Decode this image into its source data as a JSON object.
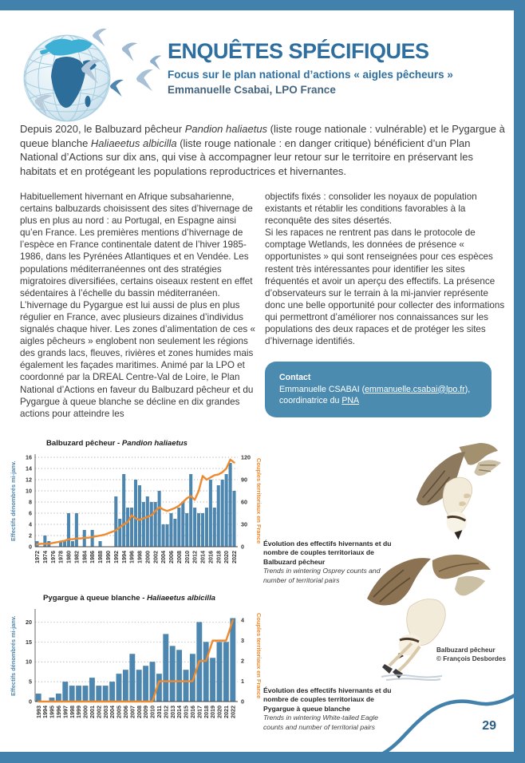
{
  "page": {
    "number": "29"
  },
  "header": {
    "title": "ENQUÊTES SPÉCIFIQUES",
    "subtitle": "Focus sur le plan national d’actions « aigles pêcheurs »",
    "author": "Emmanuelle Csabai, LPO France"
  },
  "icons": {
    "logo": "globe-with-migrating-birds",
    "illustration_top": "osprey-diving",
    "illustration_bottom": "osprey-hunting",
    "decoration": "wave-curve"
  },
  "intro": {
    "part1": "Depuis 2020, le Balbuzard pêcheur ",
    "species1": "Pandion haliaetus",
    "part2": " (liste rouge nationale : vulnérable) et le Pygargue à queue blanche ",
    "species2": "Haliaeetus albicilla",
    "part3": " (liste rouge nationale : en danger critique) bénéficient d’un Plan National d’Actions sur dix ans, qui vise à accompagner leur retour sur le territoire en préservant les habitats et en protégeant les populations reproductrices et hivernantes."
  },
  "columns": {
    "left_p1": "Habituellement hivernant en Afrique subsaharienne, certains balbuzards choisissent des sites d’hivernage de plus en plus au nord : au Portugal, en Espagne ainsi qu’en France. Les premières mentions d’hivernage de l’espèce en France continentale datent de l’hiver 1985-1986, dans les Pyrénées Atlantiques et en Vendée. Les populations méditerranéennes ont des stratégies migratoires diversifiées, certains oiseaux restent en effet sédentaires à l’échelle du bassin méditerranéen. L’hivernage du Pygargue est lui aussi de plus en plus régulier en France, avec plusieurs dizaines d’individus signalés chaque hiver. Les zones d’alimentation de ces « aigles pêcheurs » englobent non seulement les régions des grands lacs, fleuves, rivières et zones humides mais également les façades maritimes. Animé par la LPO et coordonné par la DREAL Centre-Val de Loire, le Plan National d’Actions en faveur du Balbuzard pêcheur et du Pygargue à queue blanche se décline en dix grandes actions pour atteindre les",
    "right_p1": "objectifs fixés : consolider les noyaux de population existants et rétablir les conditions favorables à la reconquête des sites désertés.",
    "right_p2": "Si les rapaces ne rentrent pas dans le protocole de comptage Wetlands, les données de présence « opportunistes » qui sont renseignées pour ces espèces restent très intéressantes pour identifier les sites fréquentés et avoir un aperçu des effectifs. La présence d’observateurs sur le terrain à la mi-janvier représente donc une belle opportunité pour collecter des informations qui permettront d’améliorer nos connaissances sur les populations des deux rapaces et de protéger les sites d’hivernage identifiés."
  },
  "contact": {
    "label": "Contact",
    "line1_prefix": "Emmanuelle CSABAI (",
    "email": "emmanuelle.csabai@lpo.fr",
    "line1_suffix": "),",
    "line2_prefix": "coordinatrice du ",
    "pna_link": "PNA"
  },
  "captions": [
    {
      "fr": "Évolution des effectifs hivernants et du nombre de couples territoriaux de Balbuzard pêcheur",
      "en": "Trends in wintering Osprey counts and number of territorial pairs"
    },
    {
      "fr": "Évolution des effectifs hivernants et du nombre de couples territoriaux de Pygargue à queue blanche",
      "en": "Trends in wintering White-tailed Eagle counts and number of territorial pairs"
    }
  ],
  "credit": {
    "line1": "Balbuzard pêcheur",
    "line2": "© François Desbordes"
  },
  "colors": {
    "frame_blue": "#4181ab",
    "title_blue": "#2e6f9f",
    "bar_blue": "#4d86ae",
    "line_orange": "#ee8a30",
    "contact_bg": "#4c8bb0"
  },
  "chart_data": [
    {
      "type": "bar+line",
      "title_prefix": "Balbuzard pêcheur - ",
      "title_species": "Pandion haliaetus",
      "ylabel_left": "Effectifs dénombrés mi-janv.",
      "ylabel_right": "Couples territoriaux en France",
      "legend_position": "none",
      "grid": "dotted-horizontal",
      "years": [
        1972,
        1973,
        1974,
        1975,
        1976,
        1977,
        1978,
        1979,
        1980,
        1981,
        1982,
        1983,
        1984,
        1985,
        1986,
        1987,
        1988,
        1989,
        1990,
        1991,
        1992,
        1993,
        1994,
        1995,
        1996,
        1997,
        1998,
        1999,
        2000,
        2001,
        2002,
        2003,
        2004,
        2005,
        2006,
        2007,
        2008,
        2009,
        2010,
        2011,
        2012,
        2013,
        2014,
        2015,
        2016,
        2017,
        2018,
        2019,
        2020,
        2021,
        2022
      ],
      "x_label_step": 2,
      "bars_name": "Effectifs dénombrés mi-janv.",
      "bars": [
        1,
        0,
        2,
        1,
        0,
        0,
        1,
        1,
        6,
        1,
        6,
        0,
        3,
        0,
        3,
        0,
        1,
        0,
        0,
        0,
        9,
        5,
        13,
        7,
        7,
        12,
        11,
        8,
        9,
        8,
        8,
        10,
        4,
        4,
        6,
        5,
        7,
        8,
        6,
        13,
        7,
        6,
        6,
        7,
        12,
        7,
        11,
        12,
        13,
        15,
        10
      ],
      "line_name": "Couples territoriaux en France",
      "line": [
        3,
        4,
        4,
        4,
        5,
        6,
        7,
        8,
        10,
        10,
        11,
        11,
        12,
        12,
        13,
        14,
        15,
        16,
        18,
        20,
        22,
        26,
        30,
        33,
        42,
        38,
        36,
        38,
        40,
        42,
        48,
        53,
        50,
        48,
        50,
        52,
        55,
        60,
        65,
        68,
        63,
        75,
        95,
        90,
        93,
        96,
        97,
        100,
        105,
        117,
        113
      ],
      "ylim_left": [
        0,
        16
      ],
      "left_ticks": [
        0,
        2,
        4,
        6,
        8,
        10,
        12,
        14,
        16
      ],
      "ylim_right": [
        0,
        120
      ],
      "right_ticks": [
        0,
        30,
        60,
        90,
        120
      ],
      "bar_color": "#4d86ae",
      "line_color": "#ee8a30"
    },
    {
      "type": "bar+line",
      "title_prefix": "Pygargue à queue blanche - ",
      "title_species": "Haliaeetus albicilla",
      "ylabel_left": "Effectifs dénombrés mi-janv.",
      "ylabel_right": "Couples territoriaux en France",
      "legend_position": "none",
      "grid": "dotted-horizontal",
      "years": [
        1993,
        1994,
        1995,
        1996,
        1997,
        1998,
        1999,
        2000,
        2001,
        2002,
        2003,
        2004,
        2005,
        2006,
        2007,
        2008,
        2009,
        2010,
        2011,
        2012,
        2013,
        2014,
        2015,
        2016,
        2017,
        2018,
        2019,
        2020,
        2021,
        2022
      ],
      "x_label_step": 1,
      "bars_name": "Effectifs dénombrés mi-janv.",
      "bars": [
        2,
        0,
        1,
        2,
        5,
        4,
        4,
        4,
        6,
        4,
        4,
        5,
        7,
        8,
        12,
        8,
        9,
        10,
        7,
        17,
        14,
        13,
        8,
        12,
        20,
        15,
        11,
        15,
        15,
        21
      ],
      "line_name": "Couples territoriaux en France",
      "line": [
        0,
        0,
        0,
        0,
        0,
        0,
        0,
        0,
        0,
        0,
        0,
        0,
        0,
        0,
        0,
        0,
        0,
        0,
        1,
        1,
        1,
        1,
        1,
        1,
        2,
        2,
        3,
        3,
        3,
        4
      ],
      "ylim_left": [
        0,
        22.5
      ],
      "left_ticks": [
        0,
        5,
        10,
        15,
        20
      ],
      "ylim_right": [
        0,
        4.4
      ],
      "right_ticks": [
        0,
        1,
        2,
        3,
        4
      ],
      "bar_color": "#4d86ae",
      "line_color": "#ee8a30"
    }
  ]
}
